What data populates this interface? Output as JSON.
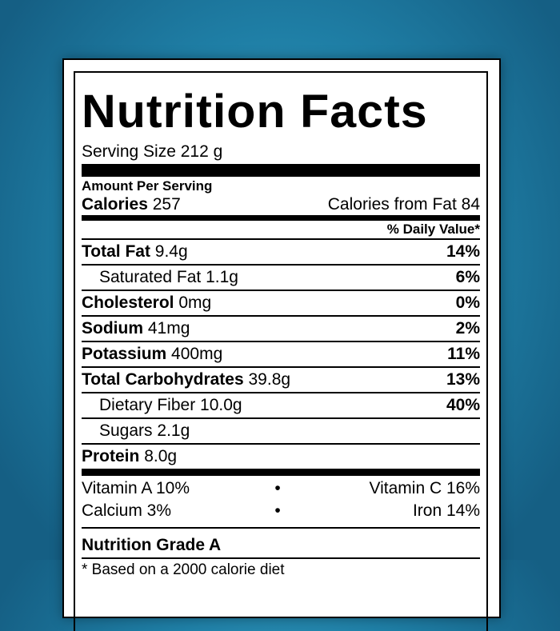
{
  "title": "Nutrition Facts",
  "serving_size": "Serving Size 212 g",
  "amount_per_serving": "Amount Per Serving",
  "calories": {
    "label": "Calories",
    "value": "257",
    "from_fat": "Calories from Fat 84"
  },
  "daily_value_header": "% Daily Value*",
  "nutrients": [
    {
      "label": "Total Fat",
      "amount": "9.4g",
      "dv": "14%"
    },
    {
      "label": "Saturated Fat",
      "amount": "1.1g",
      "dv": "6%"
    },
    {
      "label": "Cholesterol",
      "amount": "0mg",
      "dv": "0%"
    },
    {
      "label": "Sodium",
      "amount": "41mg",
      "dv": "2%"
    },
    {
      "label": "Potassium",
      "amount": "400mg",
      "dv": "11%"
    },
    {
      "label": "Total Carbohydrates",
      "amount": "39.8g",
      "dv": "13%"
    },
    {
      "label": "Dietary Fiber",
      "amount": "10.0g",
      "dv": "40%"
    },
    {
      "label": "Sugars",
      "amount": "2.1g",
      "dv": ""
    },
    {
      "label": "Protein",
      "amount": "8.0g",
      "dv": ""
    }
  ],
  "vitamins": [
    {
      "left": "Vitamin A 10%",
      "sep": "•",
      "right": "Vitamin C 16%"
    },
    {
      "left": "Calcium 3%",
      "sep": "•",
      "right": "Iron 14%"
    }
  ],
  "grade": "Nutrition Grade A",
  "footnote": "* Based on a 2000 calorie diet"
}
